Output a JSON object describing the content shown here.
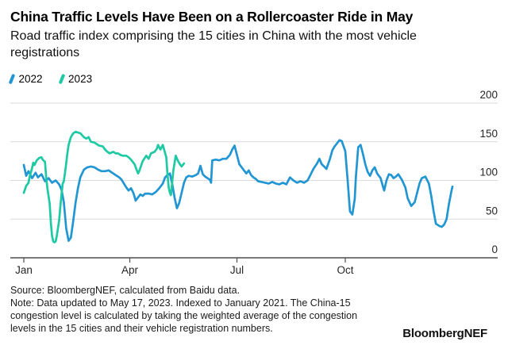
{
  "header": {
    "title": "China Traffic Levels Have Been on a Rollercoaster Ride in May",
    "subtitle": "Road traffic index comprising the 15 cities in China with the most vehicle registrations"
  },
  "legend": {
    "items": [
      {
        "label": "2022",
        "color": "#2196d3"
      },
      {
        "label": "2023",
        "color": "#1ec9a3"
      }
    ]
  },
  "chart_data": {
    "type": "line",
    "title": "China Traffic Levels Have Been on a Rollercoaster Ride in May",
    "subtitle": "Road traffic index comprising the 15 cities in China with the most vehicle registrations",
    "grid": true,
    "legend_position": "top-left",
    "x_axis": {
      "unit": "day_of_year",
      "domain": [
        1,
        365
      ],
      "tick_labels": [
        "Jan",
        "Apr",
        "Jul",
        "Oct"
      ],
      "tick_days": [
        1,
        91,
        182,
        274
      ]
    },
    "y_axis": {
      "side": "right",
      "range": [
        0,
        200
      ],
      "ticks": [
        0,
        50,
        100,
        150,
        200
      ]
    },
    "colors": {
      "grid": "#dcdcdc",
      "axis": "#4d4d4d",
      "tick_text": "#262626"
    },
    "series": [
      {
        "name": "2022",
        "color": "#2196d3",
        "points": [
          [
            1,
            120
          ],
          [
            3,
            106
          ],
          [
            5,
            112
          ],
          [
            8,
            103
          ],
          [
            11,
            110
          ],
          [
            13,
            104
          ],
          [
            16,
            108
          ],
          [
            19,
            99
          ],
          [
            22,
            103
          ],
          [
            25,
            97
          ],
          [
            28,
            100
          ],
          [
            31,
            95
          ],
          [
            33,
            88
          ],
          [
            35,
            72
          ],
          [
            37,
            38
          ],
          [
            39,
            22
          ],
          [
            41,
            26
          ],
          [
            43,
            48
          ],
          [
            45,
            72
          ],
          [
            47,
            90
          ],
          [
            49,
            104
          ],
          [
            52,
            114
          ],
          [
            55,
            117
          ],
          [
            58,
            118
          ],
          [
            61,
            117
          ],
          [
            64,
            114
          ],
          [
            67,
            112
          ],
          [
            70,
            112
          ],
          [
            73,
            113
          ],
          [
            76,
            110
          ],
          [
            79,
            107
          ],
          [
            82,
            104
          ],
          [
            84,
            101
          ],
          [
            86,
            96
          ],
          [
            88,
            91
          ],
          [
            90,
            87
          ],
          [
            92,
            90
          ],
          [
            94,
            84
          ],
          [
            96,
            74
          ],
          [
            98,
            78
          ],
          [
            100,
            82
          ],
          [
            102,
            80
          ],
          [
            104,
            83
          ],
          [
            107,
            83
          ],
          [
            110,
            82
          ],
          [
            113,
            85
          ],
          [
            116,
            90
          ],
          [
            119,
            96
          ],
          [
            121,
            104
          ],
          [
            123,
            107
          ],
          [
            125,
            109
          ],
          [
            127,
            96
          ],
          [
            129,
            78
          ],
          [
            131,
            64
          ],
          [
            133,
            71
          ],
          [
            135,
            84
          ],
          [
            137,
            97
          ],
          [
            139,
            104
          ],
          [
            141,
            106
          ],
          [
            144,
            105
          ],
          [
            147,
            107
          ],
          [
            149,
            109
          ],
          [
            151,
            119
          ],
          [
            153,
            108
          ],
          [
            155,
            105
          ],
          [
            157,
            103
          ],
          [
            159,
            101
          ],
          [
            160,
            97
          ],
          [
            161,
            126
          ],
          [
            164,
            127
          ],
          [
            167,
            126
          ],
          [
            170,
            128
          ],
          [
            173,
            128
          ],
          [
            176,
            133
          ],
          [
            178,
            140
          ],
          [
            180,
            145
          ],
          [
            182,
            133
          ],
          [
            184,
            121
          ],
          [
            186,
            117
          ],
          [
            188,
            113
          ],
          [
            190,
            109
          ],
          [
            192,
            113
          ],
          [
            194,
            107
          ],
          [
            196,
            104
          ],
          [
            198,
            102
          ],
          [
            200,
            99
          ],
          [
            203,
            98
          ],
          [
            206,
            97
          ],
          [
            209,
            96
          ],
          [
            212,
            98
          ],
          [
            215,
            96
          ],
          [
            218,
            95
          ],
          [
            221,
            97
          ],
          [
            224,
            95
          ],
          [
            227,
            104
          ],
          [
            230,
            100
          ],
          [
            233,
            97
          ],
          [
            236,
            99
          ],
          [
            239,
            97
          ],
          [
            242,
            100
          ],
          [
            245,
            109
          ],
          [
            247,
            115
          ],
          [
            250,
            122
          ],
          [
            252,
            128
          ],
          [
            254,
            121
          ],
          [
            256,
            118
          ],
          [
            258,
            115
          ],
          [
            261,
            128
          ],
          [
            263,
            139
          ],
          [
            265,
            144
          ],
          [
            267,
            148
          ],
          [
            269,
            152
          ],
          [
            271,
            151
          ],
          [
            274,
            138
          ],
          [
            276,
            100
          ],
          [
            278,
            60
          ],
          [
            280,
            56
          ],
          [
            282,
            76
          ],
          [
            283,
            105
          ],
          [
            285,
            143
          ],
          [
            287,
            146
          ],
          [
            289,
            134
          ],
          [
            291,
            121
          ],
          [
            293,
            111
          ],
          [
            295,
            106
          ],
          [
            297,
            113
          ],
          [
            299,
            117
          ],
          [
            301,
            109
          ],
          [
            304,
            103
          ],
          [
            306,
            92
          ],
          [
            307,
            87
          ],
          [
            309,
            100
          ],
          [
            311,
            108
          ],
          [
            313,
            107
          ],
          [
            315,
            103
          ],
          [
            317,
            105
          ],
          [
            319,
            108
          ],
          [
            322,
            101
          ],
          [
            325,
            91
          ],
          [
            327,
            77
          ],
          [
            330,
            67
          ],
          [
            333,
            72
          ],
          [
            335,
            84
          ],
          [
            337,
            96
          ],
          [
            339,
            103
          ],
          [
            342,
            105
          ],
          [
            345,
            96
          ],
          [
            347,
            80
          ],
          [
            349,
            60
          ],
          [
            351,
            44
          ],
          [
            354,
            41
          ],
          [
            356,
            40
          ],
          [
            358,
            43
          ],
          [
            360,
            50
          ],
          [
            362,
            69
          ],
          [
            364,
            85
          ],
          [
            365,
            92
          ]
        ]
      },
      {
        "name": "2023",
        "color": "#1ec9a3",
        "points": [
          [
            1,
            84
          ],
          [
            3,
            93
          ],
          [
            5,
            97
          ],
          [
            6,
            105
          ],
          [
            8,
            116
          ],
          [
            9,
            123
          ],
          [
            10,
            120
          ],
          [
            12,
            126
          ],
          [
            14,
            129
          ],
          [
            16,
            130
          ],
          [
            17,
            127
          ],
          [
            19,
            124
          ],
          [
            20,
            104
          ],
          [
            21,
            90
          ],
          [
            23,
            70
          ],
          [
            24,
            45
          ],
          [
            25,
            28
          ],
          [
            26,
            21
          ],
          [
            27,
            20
          ],
          [
            28,
            21
          ],
          [
            29,
            28
          ],
          [
            31,
            48
          ],
          [
            32,
            66
          ],
          [
            33,
            82
          ],
          [
            34,
            96
          ],
          [
            35,
            99
          ],
          [
            36,
            110
          ],
          [
            37,
            122
          ],
          [
            38,
            135
          ],
          [
            39,
            146
          ],
          [
            41,
            156
          ],
          [
            43,
            161
          ],
          [
            45,
            163
          ],
          [
            47,
            162
          ],
          [
            49,
            161
          ],
          [
            52,
            156
          ],
          [
            54,
            154
          ],
          [
            56,
            156
          ],
          [
            58,
            150
          ],
          [
            61,
            149
          ],
          [
            63,
            147
          ],
          [
            65,
            145
          ],
          [
            68,
            144
          ],
          [
            70,
            140
          ],
          [
            72,
            137
          ],
          [
            74,
            135
          ],
          [
            77,
            137
          ],
          [
            79,
            135
          ],
          [
            81,
            135
          ],
          [
            83,
            133
          ],
          [
            85,
            132
          ],
          [
            88,
            132
          ],
          [
            90,
            130
          ],
          [
            92,
            127
          ],
          [
            95,
            121
          ],
          [
            97,
            113
          ],
          [
            98,
            109
          ],
          [
            99,
            112
          ],
          [
            102,
            125
          ],
          [
            105,
            132
          ],
          [
            107,
            128
          ],
          [
            109,
            135
          ],
          [
            112,
            137
          ],
          [
            114,
            141
          ],
          [
            115,
            146
          ],
          [
            117,
            140
          ],
          [
            119,
            146
          ],
          [
            122,
            130
          ],
          [
            123,
            108
          ],
          [
            124,
            91
          ],
          [
            125,
            84
          ],
          [
            126,
            81
          ],
          [
            128,
            113
          ],
          [
            130,
            132
          ],
          [
            132,
            125
          ],
          [
            134,
            120
          ],
          [
            135,
            118
          ],
          [
            136,
            120
          ],
          [
            137,
            122
          ]
        ]
      }
    ]
  },
  "footer": {
    "lines": [
      "Source: BloombergNEF, calculated from Baidu data.",
      "Note: Data updated to May 17, 2023. Indexed to January 2021. The China-15",
      "congestion level is calculated by taking the weighted average of the congestion",
      "levels in the 15 cities and their vehicle registration numbers."
    ],
    "logo": "BloombergNEF"
  }
}
